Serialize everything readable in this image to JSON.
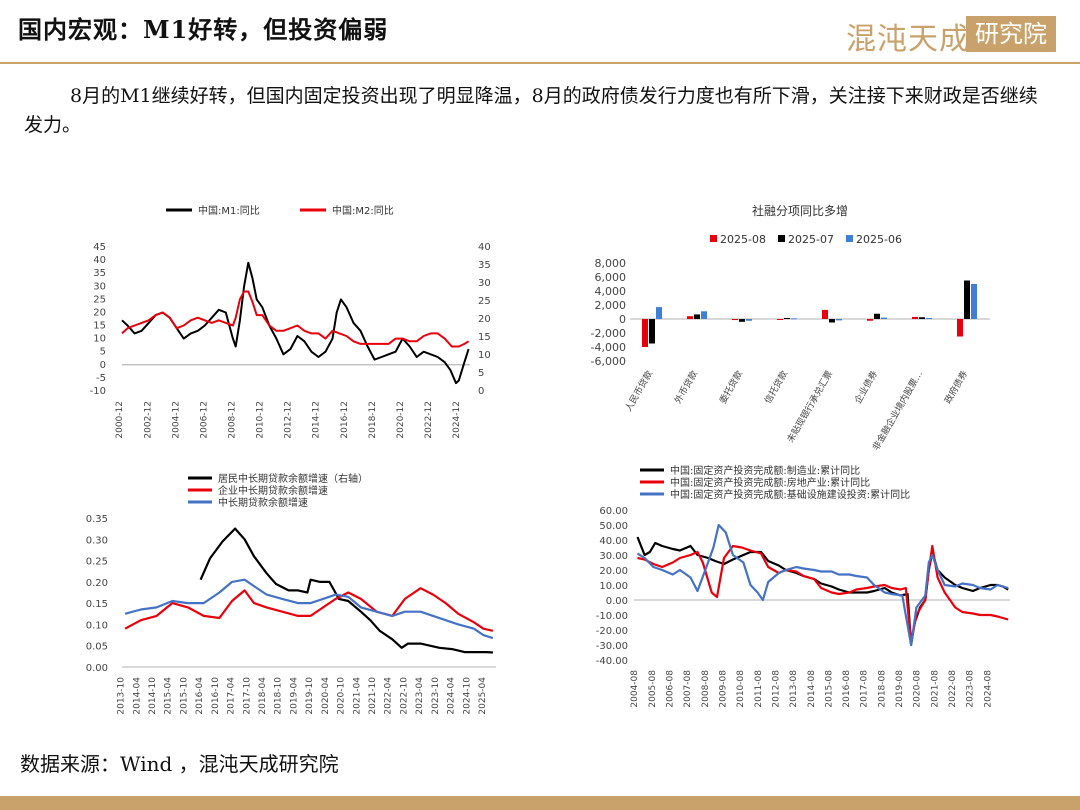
{
  "header": {
    "title": "国内宏观：M1好转，但投资偏弱",
    "logo_left": "混沌天成",
    "logo_right": "研究院",
    "brand_color": "#c9a26b"
  },
  "paragraph": "8月的M1继续好转，但国内固定投资出现了明显降温，8月的政府债发行力度也有所下滑，关注接下来财政是否继续发力。",
  "footer": {
    "source": "数据来源：Wind ，混沌天成研究院"
  },
  "chart_data": [
    {
      "id": "m1m2",
      "type": "line",
      "title": "",
      "legend": [
        "中国:M1:同比",
        "中国:M2:同比"
      ],
      "colors": [
        "#000000",
        "#e8000b"
      ],
      "ylim_left": [
        -10,
        45
      ],
      "yticks_left": [
        "45",
        "40",
        "35",
        "30",
        "25",
        "20",
        "15",
        "10",
        "5",
        "0",
        "-5",
        "-10"
      ],
      "ylim_right": [
        0,
        40
      ],
      "yticks_right": [
        "40",
        "35",
        "30",
        "25",
        "20",
        "15",
        "10",
        "5",
        "0"
      ],
      "x_ticks": [
        "2000-12",
        "2002-12",
        "2004-12",
        "2006-12",
        "2008-12",
        "2010-12",
        "2012-12",
        "2014-12",
        "2016-12",
        "2018-12",
        "2020-12",
        "2022-12",
        "2024-12"
      ],
      "x_range": [
        2000.9,
        2025.7
      ],
      "series": [
        {
          "name": "中国:M1:同比",
          "axis": "left",
          "x": [
            2000.9,
            2001.3,
            2001.8,
            2002.3,
            2002.8,
            2003.3,
            2003.8,
            2004.3,
            2004.8,
            2005.3,
            2005.8,
            2006.3,
            2006.8,
            2007.3,
            2007.8,
            2008.3,
            2008.8,
            2009.0,
            2009.3,
            2009.6,
            2009.9,
            2010.2,
            2010.5,
            2010.9,
            2011.4,
            2011.9,
            2012.4,
            2012.9,
            2013.4,
            2013.9,
            2014.4,
            2014.9,
            2015.4,
            2015.9,
            2016.2,
            2016.5,
            2016.9,
            2017.4,
            2017.9,
            2018.4,
            2018.9,
            2019.4,
            2019.9,
            2020.4,
            2020.9,
            2021.4,
            2021.9,
            2022.4,
            2022.9,
            2023.4,
            2023.9,
            2024.3,
            2024.7,
            2024.9,
            2025.3,
            2025.6
          ],
          "y": [
            17,
            15,
            12,
            13,
            16,
            19,
            20,
            18,
            14,
            10,
            12,
            13,
            15,
            18,
            21,
            20,
            10,
            7,
            17,
            30,
            39,
            33,
            25,
            22,
            15,
            10,
            4,
            6,
            11,
            9,
            5,
            3,
            5,
            10,
            20,
            25,
            22,
            16,
            13,
            7,
            2,
            3,
            4,
            5,
            10,
            7,
            3,
            5,
            4,
            3,
            1,
            -2,
            -7,
            -6,
            1,
            6
          ]
        },
        {
          "name": "中国:M2:同比",
          "axis": "left",
          "x": [
            2000.9,
            2001.3,
            2001.8,
            2002.3,
            2002.8,
            2003.3,
            2003.8,
            2004.3,
            2004.8,
            2005.3,
            2005.8,
            2006.3,
            2006.8,
            2007.3,
            2007.8,
            2008.3,
            2008.8,
            2009.0,
            2009.3,
            2009.6,
            2009.9,
            2010.2,
            2010.5,
            2010.9,
            2011.4,
            2011.9,
            2012.4,
            2012.9,
            2013.4,
            2013.9,
            2014.4,
            2014.9,
            2015.4,
            2015.9,
            2016.4,
            2016.9,
            2017.4,
            2017.9,
            2018.4,
            2018.9,
            2019.4,
            2019.9,
            2020.4,
            2020.9,
            2021.4,
            2021.9,
            2022.4,
            2022.9,
            2023.4,
            2023.9,
            2024.4,
            2024.9,
            2025.3,
            2025.6
          ],
          "y": [
            12,
            14,
            15,
            16,
            17,
            19,
            20,
            18,
            14,
            15,
            17,
            18,
            17,
            16,
            17,
            16,
            15,
            18,
            25,
            28,
            28,
            24,
            19,
            19,
            15,
            13,
            13,
            14,
            15,
            13,
            12,
            12,
            10,
            13,
            12,
            11,
            9,
            8,
            8,
            8,
            8,
            8,
            10,
            10,
            9,
            9,
            11,
            12,
            12,
            10,
            7,
            7,
            8,
            9
          ]
        }
      ]
    },
    {
      "id": "tsf",
      "type": "bar",
      "title": "社融分项同比多增",
      "legend": [
        "2025-08",
        "2025-07",
        "2025-06"
      ],
      "colors": [
        "#e8000b",
        "#000000",
        "#3f7fd6"
      ],
      "ylim": [
        -6000,
        8000
      ],
      "yticks": [
        "8,000",
        "6,000",
        "4,000",
        "2,000",
        "0",
        "-2,000",
        "-4,000",
        "-6,000"
      ],
      "categories": [
        "人民币贷款",
        "外币贷款",
        "委托贷款",
        "信托贷款",
        "未贴现银行承兑汇票",
        "企业债券",
        "非金融企业境内股票…",
        "政府债券"
      ],
      "series": [
        {
          "name": "2025-08",
          "values": [
            -4000,
            400,
            -150,
            -50,
            1300,
            -250,
            300,
            -2500
          ]
        },
        {
          "name": "2025-07",
          "values": [
            -3500,
            650,
            -400,
            150,
            -500,
            750,
            250,
            5500
          ]
        },
        {
          "name": "2025-06",
          "values": [
            1700,
            1100,
            -250,
            100,
            -200,
            200,
            150,
            5000
          ]
        }
      ]
    },
    {
      "id": "loans",
      "type": "line",
      "title": "",
      "legend": [
        "居民中长期贷款余额增速（右轴）",
        "企业中长期贷款余额增速",
        "中长期贷款余额增速"
      ],
      "colors": [
        "#000000",
        "#e8000b",
        "#4472c4"
      ],
      "ylim": [
        0,
        0.35
      ],
      "yticks": [
        "0.35",
        "0.30",
        "0.25",
        "0.20",
        "0.15",
        "0.10",
        "0.05",
        "0.00"
      ],
      "x_ticks": [
        "2013-10",
        "2014-04",
        "2014-10",
        "2015-04",
        "2015-10",
        "2016-04",
        "2016-10",
        "2017-04",
        "2017-10",
        "2018-04",
        "2018-10",
        "2019-04",
        "2019-10",
        "2020-04",
        "2020-10",
        "2021-04",
        "2021-10",
        "2022-04",
        "2022-10",
        "2023-04",
        "2023-10",
        "2024-04",
        "2024-10",
        "2025-04"
      ],
      "x_range": [
        2013.7,
        2025.6
      ],
      "series": [
        {
          "name": "居民中长期贷款余额增速（右轴）",
          "x": [
            2016.2,
            2016.5,
            2016.9,
            2017.3,
            2017.6,
            2017.9,
            2018.3,
            2018.6,
            2019.0,
            2019.3,
            2019.6,
            2019.7,
            2020.0,
            2020.3,
            2020.6,
            2020.9,
            2021.3,
            2021.6,
            2021.9,
            2022.3,
            2022.6,
            2022.8,
            2023.2,
            2023.5,
            2023.8,
            2024.2,
            2024.6,
            2024.9,
            2025.3,
            2025.5
          ],
          "y": [
            0.205,
            0.255,
            0.295,
            0.325,
            0.3,
            0.26,
            0.22,
            0.195,
            0.18,
            0.18,
            0.175,
            0.205,
            0.2,
            0.2,
            0.16,
            0.155,
            0.13,
            0.11,
            0.085,
            0.065,
            0.045,
            0.055,
            0.055,
            0.05,
            0.045,
            0.042,
            0.035,
            0.035,
            0.035,
            0.034
          ]
        },
        {
          "name": "企业中长期贷款余额增速",
          "x": [
            2013.8,
            2014.3,
            2014.8,
            2015.3,
            2015.8,
            2016.3,
            2016.8,
            2017.2,
            2017.6,
            2017.9,
            2018.3,
            2018.8,
            2019.3,
            2019.7,
            2020.1,
            2020.5,
            2020.9,
            2021.3,
            2021.8,
            2022.3,
            2022.7,
            2023.2,
            2023.6,
            2024.0,
            2024.4,
            2024.9,
            2025.2,
            2025.5
          ],
          "y": [
            0.09,
            0.11,
            0.12,
            0.15,
            0.14,
            0.12,
            0.115,
            0.155,
            0.18,
            0.15,
            0.14,
            0.13,
            0.12,
            0.12,
            0.14,
            0.16,
            0.175,
            0.16,
            0.13,
            0.12,
            0.16,
            0.185,
            0.17,
            0.15,
            0.125,
            0.105,
            0.09,
            0.085
          ]
        },
        {
          "name": "中长期贷款余额增速",
          "x": [
            2013.8,
            2014.3,
            2014.8,
            2015.3,
            2015.8,
            2016.3,
            2016.8,
            2017.2,
            2017.6,
            2017.9,
            2018.3,
            2018.8,
            2019.3,
            2019.7,
            2020.1,
            2020.5,
            2020.9,
            2021.3,
            2021.8,
            2022.3,
            2022.7,
            2023.2,
            2023.6,
            2024.0,
            2024.4,
            2024.9,
            2025.2,
            2025.5
          ],
          "y": [
            0.125,
            0.135,
            0.14,
            0.155,
            0.15,
            0.15,
            0.175,
            0.2,
            0.205,
            0.19,
            0.17,
            0.16,
            0.15,
            0.15,
            0.16,
            0.17,
            0.165,
            0.14,
            0.13,
            0.12,
            0.13,
            0.13,
            0.12,
            0.11,
            0.1,
            0.09,
            0.075,
            0.068
          ]
        }
      ]
    },
    {
      "id": "fai",
      "type": "line",
      "title": "",
      "legend": [
        "中国:固定资产投资完成额:制造业:累计同比",
        "中国:固定资产投资完成额:房地产业:累计同比",
        "中国:固定资产投资完成额:基础设施建设投资:累计同比"
      ],
      "colors": [
        "#000000",
        "#e8000b",
        "#4472c4"
      ],
      "ylim": [
        -40,
        60
      ],
      "yticks": [
        "60.00",
        "50.00",
        "40.00",
        "30.00",
        "20.00",
        "10.00",
        "0.00",
        "-10.00",
        "-20.00",
        "-30.00",
        "-40.00"
      ],
      "x_ticks": [
        "2004-08",
        "2005-08",
        "2006-08",
        "2007-08",
        "2008-08",
        "2009-08",
        "2010-08",
        "2011-08",
        "2012-08",
        "2013-08",
        "2014-08",
        "2015-08",
        "2016-08",
        "2017-08",
        "2018-08",
        "2019-08",
        "2020-08",
        "2021-08",
        "2022-08",
        "2023-08",
        "2024-08"
      ],
      "x_range": [
        2004.4,
        2025.7
      ],
      "series": [
        {
          "name": "中国:固定资产投资完成额:制造业:累计同比",
          "x": [
            2004.6,
            2005.0,
            2005.3,
            2005.6,
            2006.0,
            2006.6,
            2007.0,
            2007.6,
            2008.0,
            2008.6,
            2009.0,
            2009.5,
            2010.0,
            2010.6,
            2011.0,
            2011.6,
            2012.0,
            2012.6,
            2013.0,
            2013.6,
            2014.0,
            2014.6,
            2015.0,
            2015.6,
            2016.0,
            2016.6,
            2017.0,
            2017.6,
            2018.0,
            2018.6,
            2019.0,
            2019.5,
            2019.9,
            2020.1,
            2020.3,
            2020.6,
            2020.9,
            2021.1,
            2021.3,
            2021.6,
            2022.0,
            2022.6,
            2023.0,
            2023.6,
            2024.0,
            2024.6,
            2025.0,
            2025.3,
            2025.6
          ],
          "y": [
            42,
            30,
            32,
            38,
            36,
            34,
            33,
            36,
            30,
            28,
            26,
            24,
            27,
            30,
            32,
            32,
            26,
            23,
            20,
            18,
            16,
            14,
            11,
            9,
            7,
            5,
            5,
            5,
            6,
            8,
            5,
            3,
            4,
            -30,
            -15,
            -5,
            0,
            20,
            32,
            20,
            15,
            10,
            8,
            6,
            8,
            10,
            10,
            9,
            7
          ]
        },
        {
          "name": "中国:固定资产投资完成额:房地产业:累计同比",
          "x": [
            2004.6,
            2005.0,
            2005.5,
            2006.0,
            2006.6,
            2007.0,
            2007.6,
            2008.0,
            2008.3,
            2008.8,
            2009.1,
            2009.5,
            2010.0,
            2010.5,
            2011.0,
            2011.6,
            2012.0,
            2012.6,
            2013.0,
            2013.6,
            2014.0,
            2014.6,
            2015.0,
            2015.6,
            2016.0,
            2016.6,
            2017.0,
            2017.6,
            2018.0,
            2018.6,
            2019.0,
            2019.5,
            2019.8,
            2020.1,
            2020.4,
            2020.9,
            2021.1,
            2021.3,
            2021.6,
            2022.0,
            2022.6,
            2023.0,
            2023.6,
            2024.0,
            2024.6,
            2025.0,
            2025.6
          ],
          "y": [
            28,
            27,
            24,
            22,
            25,
            28,
            30,
            32,
            25,
            5,
            2,
            28,
            36,
            35,
            33,
            31,
            22,
            18,
            20,
            19,
            16,
            14,
            8,
            5,
            4,
            5,
            7,
            8,
            9,
            10,
            8,
            7,
            8,
            -28,
            -10,
            0,
            20,
            36,
            15,
            5,
            -5,
            -8,
            -9,
            -10,
            -10,
            -11,
            -13
          ]
        },
        {
          "name": "中国:固定资产投资完成额:基础设施建设投资:累计同比",
          "x": [
            2004.6,
            2005.0,
            2005.5,
            2006.0,
            2006.6,
            2007.0,
            2007.6,
            2008.0,
            2008.5,
            2008.9,
            2009.2,
            2009.6,
            2010.0,
            2010.6,
            2011.0,
            2011.4,
            2011.7,
            2012.0,
            2012.6,
            2013.0,
            2013.6,
            2014.0,
            2014.6,
            2015.0,
            2015.6,
            2016.0,
            2016.6,
            2017.0,
            2017.6,
            2018.0,
            2018.6,
            2019.0,
            2019.6,
            2020.1,
            2020.4,
            2020.9,
            2021.1,
            2021.3,
            2021.6,
            2022.0,
            2022.6,
            2023.0,
            2023.6,
            2024.0,
            2024.6,
            2025.0,
            2025.6
          ],
          "y": [
            31,
            28,
            22,
            20,
            17,
            20,
            15,
            6,
            22,
            35,
            50,
            45,
            30,
            25,
            10,
            5,
            0,
            12,
            18,
            20,
            22,
            21,
            20,
            19,
            19,
            17,
            17,
            16,
            15,
            10,
            5,
            4,
            3,
            -30,
            -5,
            3,
            25,
            30,
            20,
            10,
            9,
            11,
            10,
            8,
            7,
            10,
            8
          ]
        }
      ]
    }
  ]
}
